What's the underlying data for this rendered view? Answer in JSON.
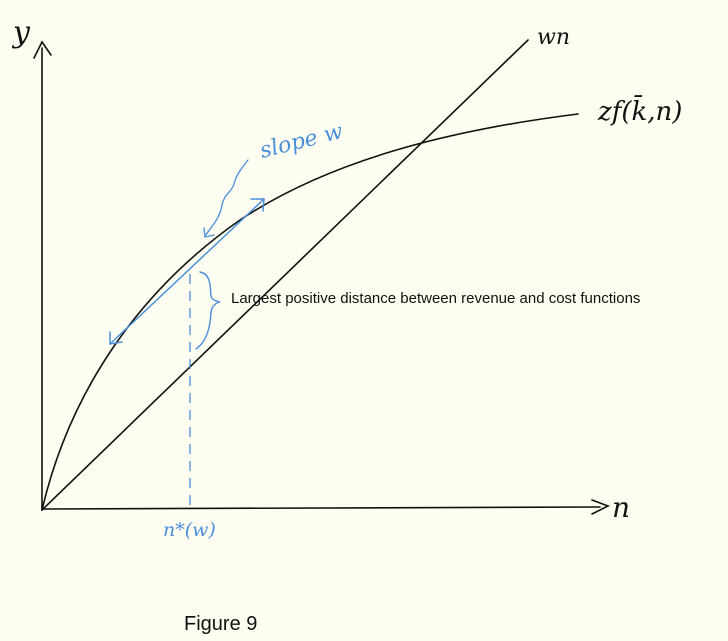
{
  "axes": {
    "y_label": "y",
    "x_label": "n"
  },
  "curves": {
    "cost_label": "wn",
    "revenue_label": "zf(k̄,n)"
  },
  "tangent": {
    "label": "slope w"
  },
  "optimum": {
    "label": "n*(w)"
  },
  "annotation": {
    "text": "Largest positive distance between revenue and cost functions"
  },
  "caption": "Figure 9",
  "colors": {
    "ink": "#111111",
    "blue": "#4a90d9",
    "background": "#fefdf2"
  }
}
